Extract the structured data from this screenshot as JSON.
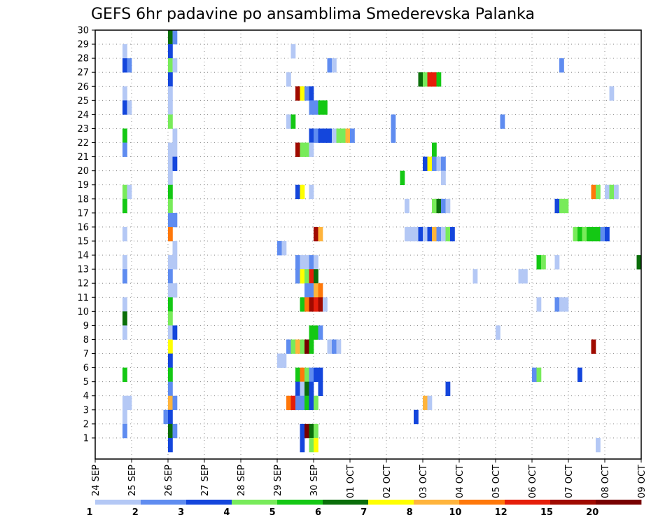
{
  "chart_data": {
    "type": "heatmap",
    "title": "GEFS 6hr padavine po ansamblima Smederevska Palanka",
    "xlabel": "",
    "ylabel": "",
    "ylim": [
      0,
      30
    ],
    "x_time_range": [
      0,
      360
    ],
    "y_ticks": [
      1,
      2,
      3,
      4,
      5,
      6,
      7,
      8,
      9,
      10,
      11,
      12,
      13,
      14,
      15,
      16,
      17,
      18,
      19,
      20,
      21,
      22,
      23,
      24,
      25,
      26,
      27,
      28,
      29,
      30
    ],
    "x_ticks": [
      {
        "label": "24 SEP",
        "t": 0
      },
      {
        "label": "25 SEP",
        "t": 24
      },
      {
        "label": "26 SEP",
        "t": 48
      },
      {
        "label": "27 SEP",
        "t": 72
      },
      {
        "label": "28 SEP",
        "t": 96
      },
      {
        "label": "29 SEP",
        "t": 120
      },
      {
        "label": "30 SEP",
        "t": 144
      },
      {
        "label": "01 OCT",
        "t": 168
      },
      {
        "label": "02 OCT",
        "t": 192
      },
      {
        "label": "03 OCT",
        "t": 216
      },
      {
        "label": "04 OCT",
        "t": 240
      },
      {
        "label": "05 OCT",
        "t": 264
      },
      {
        "label": "06 OCT",
        "t": 288
      },
      {
        "label": "07 OCT",
        "t": 312
      },
      {
        "label": "08 OCT",
        "t": 336
      },
      {
        "label": "09 OCT",
        "t": 360
      }
    ],
    "legend": {
      "colors": [
        "#b4c8f5",
        "#5f8cf0",
        "#1446dc",
        "#78eb5a",
        "#14c814",
        "#0a6e0a",
        "#ffff00",
        "#ffb43c",
        "#ff780a",
        "#e61e0a",
        "#a00a00",
        "#780000"
      ],
      "labels": [
        "1",
        "2",
        "3",
        "4",
        "5",
        "6",
        "7",
        "8",
        "10",
        "12",
        "15",
        "20"
      ]
    },
    "cells": [
      [
        30,
        48,
        5
      ],
      [
        30,
        51,
        1
      ],
      [
        29,
        18,
        0
      ],
      [
        29,
        48,
        2
      ],
      [
        29,
        129,
        0
      ],
      [
        28,
        18,
        2
      ],
      [
        28,
        21,
        1
      ],
      [
        28,
        48,
        3
      ],
      [
        28,
        51,
        0
      ],
      [
        28,
        153,
        1
      ],
      [
        28,
        156,
        0
      ],
      [
        28,
        306,
        1
      ],
      [
        27,
        48,
        2
      ],
      [
        27,
        126,
        0
      ],
      [
        27,
        213,
        5
      ],
      [
        27,
        216,
        3
      ],
      [
        27,
        219,
        9
      ],
      [
        27,
        222,
        9
      ],
      [
        27,
        225,
        4
      ],
      [
        26,
        18,
        0
      ],
      [
        26,
        48,
        0
      ],
      [
        26,
        132,
        10
      ],
      [
        26,
        135,
        6
      ],
      [
        26,
        138,
        1
      ],
      [
        26,
        141,
        2
      ],
      [
        26,
        339,
        0
      ],
      [
        25,
        18,
        2
      ],
      [
        25,
        21,
        0
      ],
      [
        25,
        48,
        0
      ],
      [
        25,
        141,
        1
      ],
      [
        25,
        144,
        1
      ],
      [
        25,
        147,
        4
      ],
      [
        25,
        150,
        4
      ],
      [
        24,
        48,
        3
      ],
      [
        24,
        126,
        0
      ],
      [
        24,
        129,
        4
      ],
      [
        24,
        195,
        1
      ],
      [
        24,
        267,
        1
      ],
      [
        23,
        18,
        4
      ],
      [
        23,
        51,
        0
      ],
      [
        23,
        141,
        2
      ],
      [
        23,
        144,
        1
      ],
      [
        23,
        147,
        2
      ],
      [
        23,
        150,
        2
      ],
      [
        23,
        153,
        2
      ],
      [
        23,
        156,
        0
      ],
      [
        23,
        159,
        3
      ],
      [
        23,
        162,
        3
      ],
      [
        23,
        165,
        7
      ],
      [
        23,
        168,
        1
      ],
      [
        23,
        195,
        1
      ],
      [
        22,
        18,
        1
      ],
      [
        22,
        48,
        0
      ],
      [
        22,
        51,
        0
      ],
      [
        22,
        132,
        10
      ],
      [
        22,
        135,
        3
      ],
      [
        22,
        138,
        3
      ],
      [
        22,
        141,
        0
      ],
      [
        22,
        222,
        4
      ],
      [
        21,
        48,
        0
      ],
      [
        21,
        51,
        2
      ],
      [
        21,
        216,
        2
      ],
      [
        21,
        219,
        6
      ],
      [
        21,
        222,
        1
      ],
      [
        21,
        225,
        0
      ],
      [
        21,
        228,
        1
      ],
      [
        20,
        48,
        0
      ],
      [
        20,
        201,
        4
      ],
      [
        20,
        228,
        0
      ],
      [
        19,
        18,
        3
      ],
      [
        19,
        21,
        0
      ],
      [
        19,
        48,
        4
      ],
      [
        19,
        132,
        2
      ],
      [
        19,
        135,
        6
      ],
      [
        19,
        141,
        0
      ],
      [
        19,
        327,
        8
      ],
      [
        19,
        330,
        3
      ],
      [
        19,
        336,
        0
      ],
      [
        19,
        339,
        3
      ],
      [
        19,
        342,
        0
      ],
      [
        18,
        18,
        4
      ],
      [
        18,
        48,
        3
      ],
      [
        18,
        204,
        0
      ],
      [
        18,
        222,
        3
      ],
      [
        18,
        225,
        5
      ],
      [
        18,
        228,
        1
      ],
      [
        18,
        231,
        0
      ],
      [
        18,
        303,
        2
      ],
      [
        18,
        306,
        3
      ],
      [
        18,
        309,
        3
      ],
      [
        17,
        48,
        1
      ],
      [
        17,
        51,
        1
      ],
      [
        16,
        18,
        0
      ],
      [
        16,
        48,
        8
      ],
      [
        16,
        144,
        10
      ],
      [
        16,
        147,
        7
      ],
      [
        16,
        204,
        0
      ],
      [
        16,
        207,
        0
      ],
      [
        16,
        210,
        0
      ],
      [
        16,
        213,
        2
      ],
      [
        16,
        216,
        0
      ],
      [
        16,
        219,
        2
      ],
      [
        16,
        222,
        7
      ],
      [
        16,
        225,
        1
      ],
      [
        16,
        228,
        0
      ],
      [
        16,
        231,
        3
      ],
      [
        16,
        234,
        2
      ],
      [
        16,
        315,
        3
      ],
      [
        16,
        318,
        4
      ],
      [
        16,
        321,
        3
      ],
      [
        16,
        324,
        4
      ],
      [
        16,
        327,
        4
      ],
      [
        16,
        330,
        4
      ],
      [
        16,
        333,
        1
      ],
      [
        16,
        336,
        2
      ],
      [
        15,
        51,
        0
      ],
      [
        15,
        120,
        1
      ],
      [
        15,
        123,
        0
      ],
      [
        14,
        18,
        0
      ],
      [
        14,
        48,
        0
      ],
      [
        14,
        51,
        0
      ],
      [
        14,
        132,
        1
      ],
      [
        14,
        135,
        0
      ],
      [
        14,
        138,
        0
      ],
      [
        14,
        141,
        1
      ],
      [
        14,
        144,
        0
      ],
      [
        14,
        291,
        4
      ],
      [
        14,
        294,
        3
      ],
      [
        14,
        303,
        0
      ],
      [
        14,
        357,
        5
      ],
      [
        13,
        18,
        1
      ],
      [
        13,
        48,
        1
      ],
      [
        13,
        132,
        1
      ],
      [
        13,
        135,
        6
      ],
      [
        13,
        138,
        3
      ],
      [
        13,
        141,
        9
      ],
      [
        13,
        144,
        5
      ],
      [
        13,
        249,
        0
      ],
      [
        13,
        279,
        0
      ],
      [
        13,
        282,
        0
      ],
      [
        12,
        48,
        0
      ],
      [
        12,
        51,
        0
      ],
      [
        12,
        138,
        1
      ],
      [
        12,
        141,
        1
      ],
      [
        12,
        144,
        7
      ],
      [
        12,
        147,
        8
      ],
      [
        11,
        18,
        0
      ],
      [
        11,
        48,
        4
      ],
      [
        11,
        135,
        4
      ],
      [
        11,
        138,
        8
      ],
      [
        11,
        141,
        10
      ],
      [
        11,
        144,
        9
      ],
      [
        11,
        147,
        10
      ],
      [
        11,
        150,
        0
      ],
      [
        11,
        291,
        0
      ],
      [
        11,
        303,
        1
      ],
      [
        11,
        306,
        0
      ],
      [
        11,
        309,
        0
      ],
      [
        10,
        18,
        5
      ],
      [
        10,
        48,
        3
      ],
      [
        9,
        18,
        0
      ],
      [
        9,
        48,
        0
      ],
      [
        9,
        51,
        2
      ],
      [
        9,
        141,
        4
      ],
      [
        9,
        144,
        4
      ],
      [
        9,
        147,
        1
      ],
      [
        9,
        264,
        0
      ],
      [
        8,
        48,
        6
      ],
      [
        8,
        126,
        1
      ],
      [
        8,
        129,
        3
      ],
      [
        8,
        132,
        7
      ],
      [
        8,
        135,
        3
      ],
      [
        8,
        138,
        11
      ],
      [
        8,
        141,
        4
      ],
      [
        8,
        153,
        0
      ],
      [
        8,
        156,
        1
      ],
      [
        8,
        159,
        0
      ],
      [
        8,
        327,
        10
      ],
      [
        7,
        48,
        2
      ],
      [
        7,
        120,
        0
      ],
      [
        7,
        123,
        0
      ],
      [
        6,
        18,
        4
      ],
      [
        6,
        48,
        4
      ],
      [
        6,
        132,
        4
      ],
      [
        6,
        135,
        8
      ],
      [
        6,
        138,
        3
      ],
      [
        6,
        141,
        1
      ],
      [
        6,
        144,
        2
      ],
      [
        6,
        147,
        2
      ],
      [
        6,
        288,
        1
      ],
      [
        6,
        291,
        3
      ],
      [
        6,
        318,
        2
      ],
      [
        5,
        48,
        1
      ],
      [
        5,
        132,
        2
      ],
      [
        5,
        135,
        0
      ],
      [
        5,
        138,
        5
      ],
      [
        5,
        141,
        2
      ],
      [
        5,
        147,
        2
      ],
      [
        5,
        231,
        2
      ],
      [
        4,
        18,
        0
      ],
      [
        4,
        21,
        0
      ],
      [
        4,
        48,
        7
      ],
      [
        4,
        51,
        1
      ],
      [
        4,
        126,
        8
      ],
      [
        4,
        129,
        9
      ],
      [
        4,
        132,
        1
      ],
      [
        4,
        135,
        1
      ],
      [
        4,
        138,
        4
      ],
      [
        4,
        141,
        2
      ],
      [
        4,
        144,
        3
      ],
      [
        4,
        216,
        7
      ],
      [
        4,
        219,
        0
      ],
      [
        3,
        18,
        0
      ],
      [
        3,
        45,
        1
      ],
      [
        3,
        48,
        2
      ],
      [
        3,
        210,
        2
      ],
      [
        2,
        18,
        1
      ],
      [
        2,
        48,
        5
      ],
      [
        2,
        51,
        1
      ],
      [
        2,
        135,
        2
      ],
      [
        2,
        138,
        11
      ],
      [
        2,
        141,
        5
      ],
      [
        2,
        144,
        3
      ],
      [
        1,
        48,
        2
      ],
      [
        1,
        135,
        2
      ],
      [
        1,
        141,
        3
      ],
      [
        1,
        144,
        6
      ],
      [
        1,
        330,
        0
      ]
    ]
  }
}
